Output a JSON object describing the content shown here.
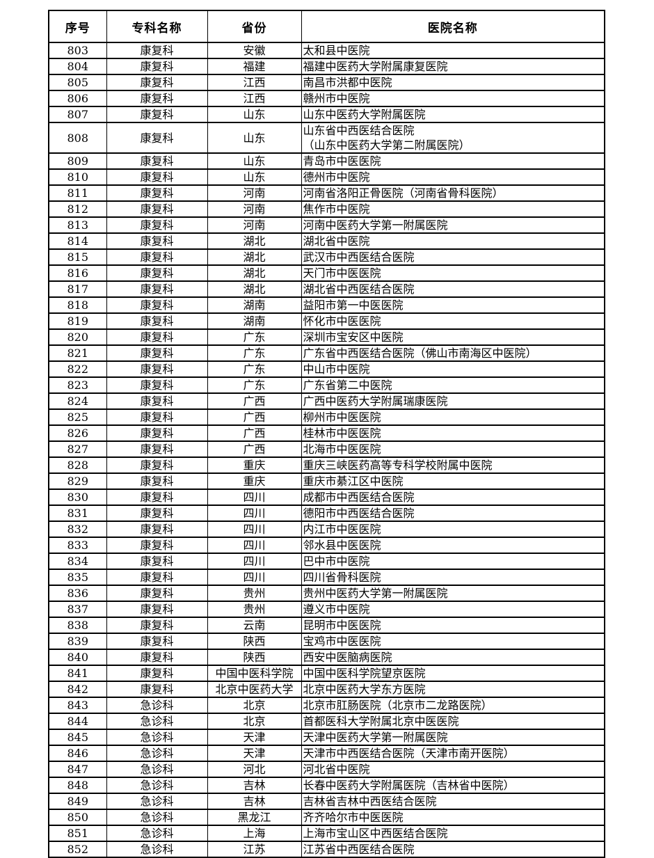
{
  "table": {
    "headers": {
      "no": "序号",
      "specialty": "专科名称",
      "province": "省份",
      "hospital": "医院名称"
    },
    "rows": [
      {
        "no": "803",
        "specialty": "康复科",
        "province": "安徽",
        "hospital": "太和县中医院"
      },
      {
        "no": "804",
        "specialty": "康复科",
        "province": "福建",
        "hospital": "福建中医药大学附属康复医院"
      },
      {
        "no": "805",
        "specialty": "康复科",
        "province": "江西",
        "hospital": "南昌市洪都中医院"
      },
      {
        "no": "806",
        "specialty": "康复科",
        "province": "江西",
        "hospital": "赣州市中医院"
      },
      {
        "no": "807",
        "specialty": "康复科",
        "province": "山东",
        "hospital": "山东中医药大学附属医院"
      },
      {
        "no": "808",
        "specialty": "康复科",
        "province": "山东",
        "hospital": "山东省中西医结合医院\n（山东中医药大学第二附属医院）"
      },
      {
        "no": "809",
        "specialty": "康复科",
        "province": "山东",
        "hospital": "青岛市中医医院"
      },
      {
        "no": "810",
        "specialty": "康复科",
        "province": "山东",
        "hospital": "德州市中医院"
      },
      {
        "no": "811",
        "specialty": "康复科",
        "province": "河南",
        "hospital": "河南省洛阳正骨医院（河南省骨科医院）"
      },
      {
        "no": "812",
        "specialty": "康复科",
        "province": "河南",
        "hospital": "焦作市中医院"
      },
      {
        "no": "813",
        "specialty": "康复科",
        "province": "河南",
        "hospital": "河南中医药大学第一附属医院"
      },
      {
        "no": "814",
        "specialty": "康复科",
        "province": "湖北",
        "hospital": "湖北省中医院"
      },
      {
        "no": "815",
        "specialty": "康复科",
        "province": "湖北",
        "hospital": "武汉市中西医结合医院"
      },
      {
        "no": "816",
        "specialty": "康复科",
        "province": "湖北",
        "hospital": "天门市中医医院"
      },
      {
        "no": "817",
        "specialty": "康复科",
        "province": "湖北",
        "hospital": "湖北省中西医结合医院"
      },
      {
        "no": "818",
        "specialty": "康复科",
        "province": "湖南",
        "hospital": "益阳市第一中医医院"
      },
      {
        "no": "819",
        "specialty": "康复科",
        "province": "湖南",
        "hospital": "怀化市中医医院"
      },
      {
        "no": "820",
        "specialty": "康复科",
        "province": "广东",
        "hospital": "深圳市宝安区中医院"
      },
      {
        "no": "821",
        "specialty": "康复科",
        "province": "广东",
        "hospital": "广东省中西医结合医院（佛山市南海区中医院）"
      },
      {
        "no": "822",
        "specialty": "康复科",
        "province": "广东",
        "hospital": "中山市中医院"
      },
      {
        "no": "823",
        "specialty": "康复科",
        "province": "广东",
        "hospital": "广东省第二中医院"
      },
      {
        "no": "824",
        "specialty": "康复科",
        "province": "广西",
        "hospital": "广西中医药大学附属瑞康医院"
      },
      {
        "no": "825",
        "specialty": "康复科",
        "province": "广西",
        "hospital": "柳州市中医医院"
      },
      {
        "no": "826",
        "specialty": "康复科",
        "province": "广西",
        "hospital": "桂林市中医医院"
      },
      {
        "no": "827",
        "specialty": "康复科",
        "province": "广西",
        "hospital": "北海市中医医院"
      },
      {
        "no": "828",
        "specialty": "康复科",
        "province": "重庆",
        "hospital": "重庆三峡医药高等专科学校附属中医院"
      },
      {
        "no": "829",
        "specialty": "康复科",
        "province": "重庆",
        "hospital": "重庆市綦江区中医院"
      },
      {
        "no": "830",
        "specialty": "康复科",
        "province": "四川",
        "hospital": "成都市中西医结合医院"
      },
      {
        "no": "831",
        "specialty": "康复科",
        "province": "四川",
        "hospital": "德阳市中西医结合医院"
      },
      {
        "no": "832",
        "specialty": "康复科",
        "province": "四川",
        "hospital": "内江市中医医院"
      },
      {
        "no": "833",
        "specialty": "康复科",
        "province": "四川",
        "hospital": "邻水县中医医院"
      },
      {
        "no": "834",
        "specialty": "康复科",
        "province": "四川",
        "hospital": "巴中市中医院"
      },
      {
        "no": "835",
        "specialty": "康复科",
        "province": "四川",
        "hospital": "四川省骨科医院"
      },
      {
        "no": "836",
        "specialty": "康复科",
        "province": "贵州",
        "hospital": "贵州中医药大学第一附属医院"
      },
      {
        "no": "837",
        "specialty": "康复科",
        "province": "贵州",
        "hospital": "遵义市中医院"
      },
      {
        "no": "838",
        "specialty": "康复科",
        "province": "云南",
        "hospital": "昆明市中医医院"
      },
      {
        "no": "839",
        "specialty": "康复科",
        "province": "陕西",
        "hospital": "宝鸡市中医医院"
      },
      {
        "no": "840",
        "specialty": "康复科",
        "province": "陕西",
        "hospital": "西安中医脑病医院"
      },
      {
        "no": "841",
        "specialty": "康复科",
        "province": "中国中医科学院",
        "hospital": "中国中医科学院望京医院"
      },
      {
        "no": "842",
        "specialty": "康复科",
        "province": "北京中医药大学",
        "hospital": "北京中医药大学东方医院"
      },
      {
        "no": "843",
        "specialty": "急诊科",
        "province": "北京",
        "hospital": "北京市肛肠医院（北京市二龙路医院）"
      },
      {
        "no": "844",
        "specialty": "急诊科",
        "province": "北京",
        "hospital": "首都医科大学附属北京中医医院"
      },
      {
        "no": "845",
        "specialty": "急诊科",
        "province": "天津",
        "hospital": "天津中医药大学第一附属医院"
      },
      {
        "no": "846",
        "specialty": "急诊科",
        "province": "天津",
        "hospital": "天津市中西医结合医院（天津市南开医院）"
      },
      {
        "no": "847",
        "specialty": "急诊科",
        "province": "河北",
        "hospital": "河北省中医院"
      },
      {
        "no": "848",
        "specialty": "急诊科",
        "province": "吉林",
        "hospital": "长春中医药大学附属医院（吉林省中医院）"
      },
      {
        "no": "849",
        "specialty": "急诊科",
        "province": "吉林",
        "hospital": "吉林省吉林中西医结合医院"
      },
      {
        "no": "850",
        "specialty": "急诊科",
        "province": "黑龙江",
        "hospital": "齐齐哈尔市中医医院"
      },
      {
        "no": "851",
        "specialty": "急诊科",
        "province": "上海",
        "hospital": "上海市宝山区中西医结合医院"
      },
      {
        "no": "852",
        "specialty": "急诊科",
        "province": "江苏",
        "hospital": "江苏省中西医结合医院"
      }
    ]
  }
}
